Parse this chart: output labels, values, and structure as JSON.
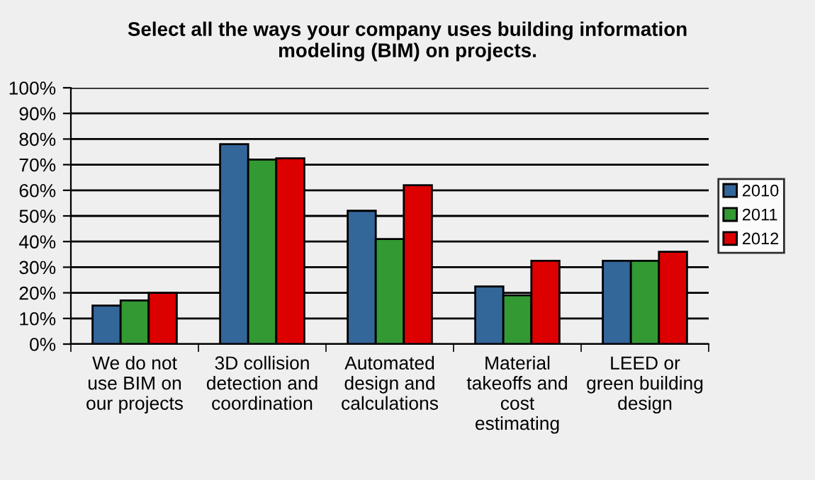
{
  "chart_data": {
    "type": "bar",
    "title": "Select all the ways your company uses building information\nmodeling (BIM) on projects.",
    "categories": [
      "We do not\nuse BIM on\nour projects",
      "3D collision\ndetection and\ncoordination",
      "Automated\ndesign and\ncalculations",
      "Material\ntakeoffs and\ncost\nestimating",
      "LEED or\ngreen building\ndesign"
    ],
    "series": [
      {
        "name": "2010",
        "color": "#336699",
        "values": [
          15,
          78,
          52,
          22.5,
          32.5
        ]
      },
      {
        "name": "2011",
        "color": "#339933",
        "values": [
          17,
          72,
          41,
          19,
          32.5
        ]
      },
      {
        "name": "2012",
        "color": "#dd0000",
        "values": [
          20,
          72.5,
          62,
          32.5,
          36
        ]
      }
    ],
    "ylim": [
      0,
      100
    ],
    "yticks": [
      {
        "value": 0,
        "label": "0%"
      },
      {
        "value": 10,
        "label": "10%"
      },
      {
        "value": 20,
        "label": "20%"
      },
      {
        "value": 30,
        "label": "30%"
      },
      {
        "value": 40,
        "label": "40%"
      },
      {
        "value": 50,
        "label": "50%"
      },
      {
        "value": 60,
        "label": "60%"
      },
      {
        "value": 70,
        "label": "70%"
      },
      {
        "value": 80,
        "label": "80%"
      },
      {
        "value": 90,
        "label": "90%"
      },
      {
        "value": 100,
        "label": "100%"
      }
    ],
    "grid": "y",
    "legend": "right"
  }
}
